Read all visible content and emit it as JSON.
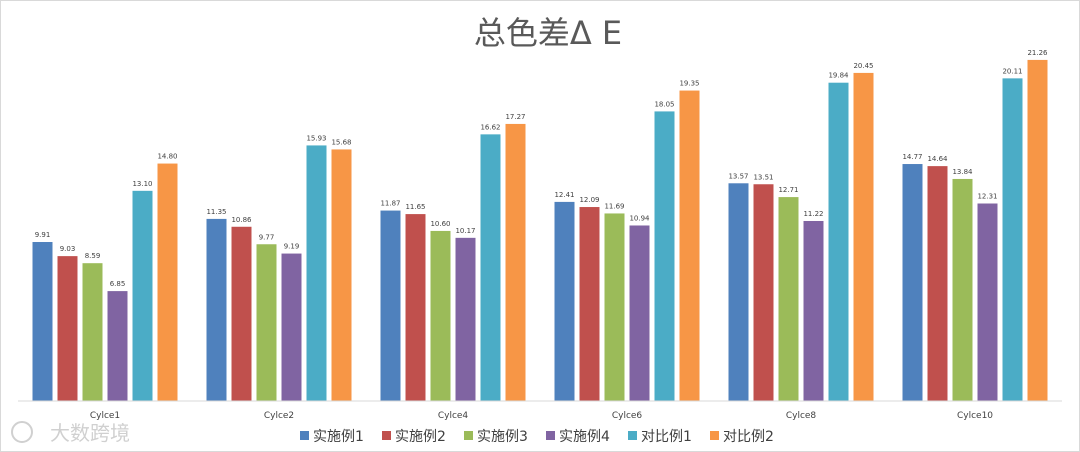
{
  "chart_data": {
    "type": "bar",
    "title": "总色差Δ E",
    "categories": [
      "Cylce1",
      "Cylce2",
      "Cylce4",
      "Cylce6",
      "Cylce8",
      "Cylce10"
    ],
    "series": [
      {
        "name": "实施例1",
        "color": "#4f81bd",
        "values": [
          9.91,
          11.35,
          11.87,
          12.41,
          13.57,
          14.77
        ]
      },
      {
        "name": "实施例2",
        "color": "#c0504d",
        "values": [
          9.03,
          10.86,
          11.65,
          12.09,
          13.51,
          14.64
        ]
      },
      {
        "name": "实施例3",
        "color": "#9bbb59",
        "values": [
          8.59,
          9.77,
          10.6,
          11.69,
          12.71,
          13.84
        ]
      },
      {
        "name": "实施例4",
        "color": "#8064a2",
        "values": [
          6.85,
          9.19,
          10.17,
          10.94,
          11.22,
          12.31
        ]
      },
      {
        "name": "对比例1",
        "color": "#4bacc6",
        "values": [
          13.1,
          15.93,
          16.62,
          18.05,
          19.84,
          20.11
        ]
      },
      {
        "name": "对比例2",
        "color": "#f79646",
        "values": [
          14.8,
          15.68,
          17.27,
          19.35,
          20.45,
          21.26
        ]
      }
    ],
    "ylim": [
      0,
      23
    ],
    "grid": false,
    "legend": "bottom",
    "xlabel": "",
    "ylabel": ""
  },
  "watermark": {
    "text": "大数跨境"
  }
}
